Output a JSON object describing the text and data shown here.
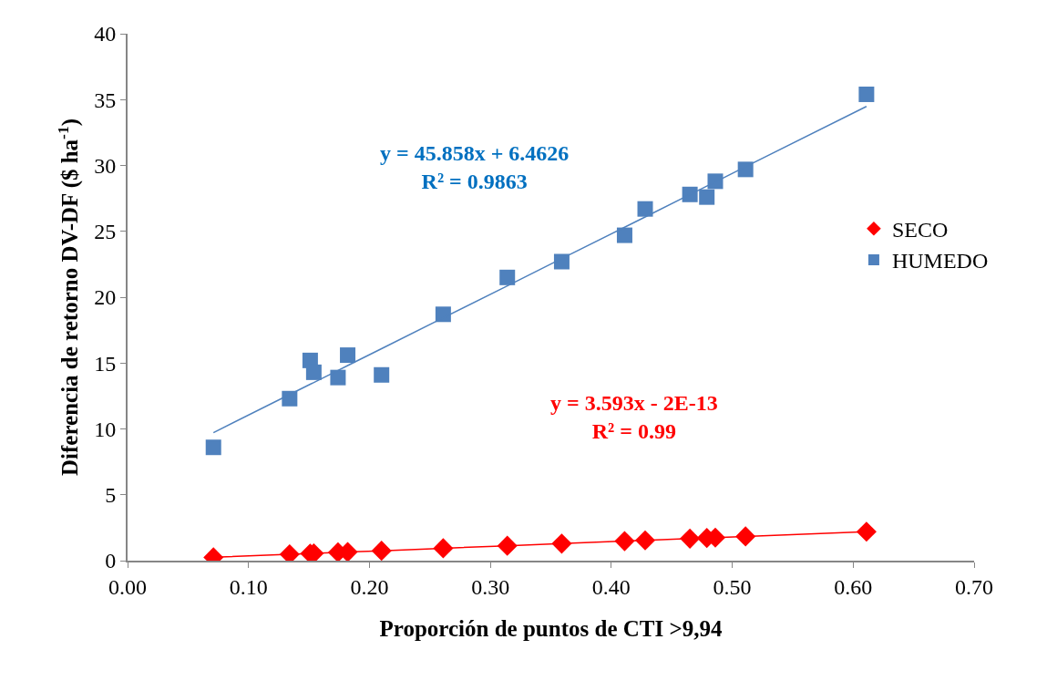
{
  "chart_data": {
    "type": "scatter",
    "xlabel": "Proporción de puntos de CTI >9,94",
    "ylabel": "Diferencia de retorno DV-DF ($ ha$^{-1}$)",
    "x": [
      0.071,
      0.134,
      0.151,
      0.154,
      0.174,
      0.182,
      0.21,
      0.261,
      0.314,
      0.359,
      0.411,
      0.428,
      0.465,
      0.479,
      0.486,
      0.511,
      0.611
    ],
    "series": [
      {
        "name": "SECO",
        "color": "#ff0000",
        "marker": "diamond",
        "values": [
          0.25,
          0.48,
          0.54,
          0.55,
          0.63,
          0.65,
          0.75,
          0.94,
          1.13,
          1.29,
          1.48,
          1.54,
          1.67,
          1.72,
          1.75,
          1.84,
          2.2
        ]
      },
      {
        "name": "HUMEDO",
        "color": "#4f81bd",
        "marker": "square",
        "values": [
          8.6,
          12.3,
          15.2,
          14.3,
          13.9,
          15.6,
          14.1,
          18.7,
          21.5,
          22.7,
          24.7,
          26.7,
          27.8,
          27.6,
          28.8,
          29.7,
          35.4
        ]
      },
      {
        "type": "line",
        "color": "#ff0000",
        "marker": "none",
        "values": [
          0.26,
          0.48,
          0.54,
          0.55,
          0.63,
          0.65,
          0.75,
          0.94,
          1.13,
          1.29,
          1.48,
          1.54,
          1.67,
          1.72,
          1.75,
          1.84,
          2.2
        ]
      },
      {
        "type": "line",
        "color": "#4f81bd",
        "marker": "none",
        "values": [
          9.72,
          12.61,
          13.39,
          13.52,
          14.44,
          14.81,
          16.09,
          18.43,
          20.86,
          22.93,
          25.31,
          26.09,
          27.79,
          28.43,
          28.75,
          29.9,
          34.48
        ]
      }
    ],
    "annotations": [
      "y = 45.858x + 6.4626\nR² = 0.9863",
      "y = 3.593x - 2E-13\nR² = 0.99"
    ],
    "xlim": [
      0,
      0.7
    ],
    "xticks": [
      {
        "value": 0,
        "label": "0.00"
      },
      {
        "value": 0.1,
        "label": "0.10"
      },
      {
        "value": 0.2,
        "label": "0.20"
      },
      {
        "value": 0.3,
        "label": "0.30"
      },
      {
        "value": 0.4,
        "label": "0.40"
      },
      {
        "value": 0.5,
        "label": "0.50"
      },
      {
        "value": 0.6,
        "label": "0.60"
      },
      {
        "value": 0.7,
        "label": "0.70"
      }
    ],
    "ylim": [
      0,
      40
    ],
    "yticks": [
      0,
      5,
      10,
      15,
      20,
      25,
      30,
      35,
      40
    ],
    "legend": "right"
  }
}
